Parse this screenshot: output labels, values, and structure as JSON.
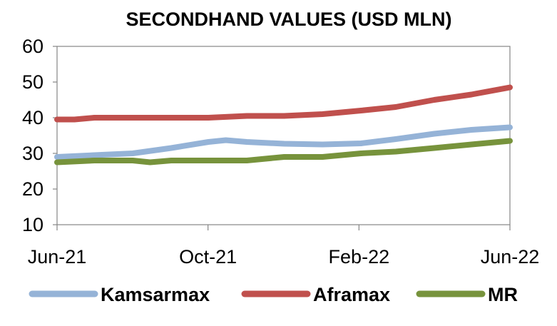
{
  "chart_data": {
    "type": "line",
    "title": "SECONDHAND VALUES (USD MLN)",
    "xlabel": "",
    "ylabel": "",
    "ylim": [
      10,
      60
    ],
    "yticks": [
      10,
      20,
      30,
      40,
      50,
      60
    ],
    "xticks": [
      "Jun-21",
      "Oct-21",
      "Feb-22",
      "Jun-22"
    ],
    "xlim": [
      "2021-06",
      "2022-06"
    ],
    "grid": false,
    "legend": "bottom",
    "colors": {
      "Kamsarmax": "#95b3d7",
      "Aframax": "#c0504d",
      "MR": "#77933c"
    },
    "series": [
      {
        "name": "Kamsarmax",
        "x": [
          "2021-06-01",
          "2021-07-01",
          "2021-08-01",
          "2021-09-01",
          "2021-10-01",
          "2021-10-15",
          "2021-11-01",
          "2021-12-01",
          "2022-01-01",
          "2022-02-01",
          "2022-03-01",
          "2022-04-01",
          "2022-05-01",
          "2022-06-01"
        ],
        "values": [
          29,
          29.5,
          30,
          31.5,
          33.2,
          33.7,
          33.2,
          32.7,
          32.5,
          32.8,
          34,
          35.5,
          36.6,
          37.3
        ]
      },
      {
        "name": "Aframax",
        "x": [
          "2021-06-01",
          "2021-06-15",
          "2021-07-01",
          "2021-08-01",
          "2021-09-01",
          "2021-10-01",
          "2021-11-01",
          "2021-12-01",
          "2022-01-01",
          "2022-02-01",
          "2022-03-01",
          "2022-04-01",
          "2022-05-01",
          "2022-06-01"
        ],
        "values": [
          39.5,
          39.5,
          40,
          40,
          40,
          40,
          40.5,
          40.5,
          41,
          42,
          43,
          45,
          46.5,
          48.5
        ]
      },
      {
        "name": "MR",
        "x": [
          "2021-06-01",
          "2021-07-01",
          "2021-08-01",
          "2021-08-15",
          "2021-09-01",
          "2021-10-01",
          "2021-11-01",
          "2021-12-01",
          "2022-01-01",
          "2022-02-01",
          "2022-03-01",
          "2022-04-01",
          "2022-05-01",
          "2022-06-01"
        ],
        "values": [
          27.5,
          28,
          28,
          27.5,
          28,
          28,
          28,
          29,
          29,
          30,
          30.5,
          31.5,
          32.5,
          33.5
        ]
      }
    ]
  }
}
